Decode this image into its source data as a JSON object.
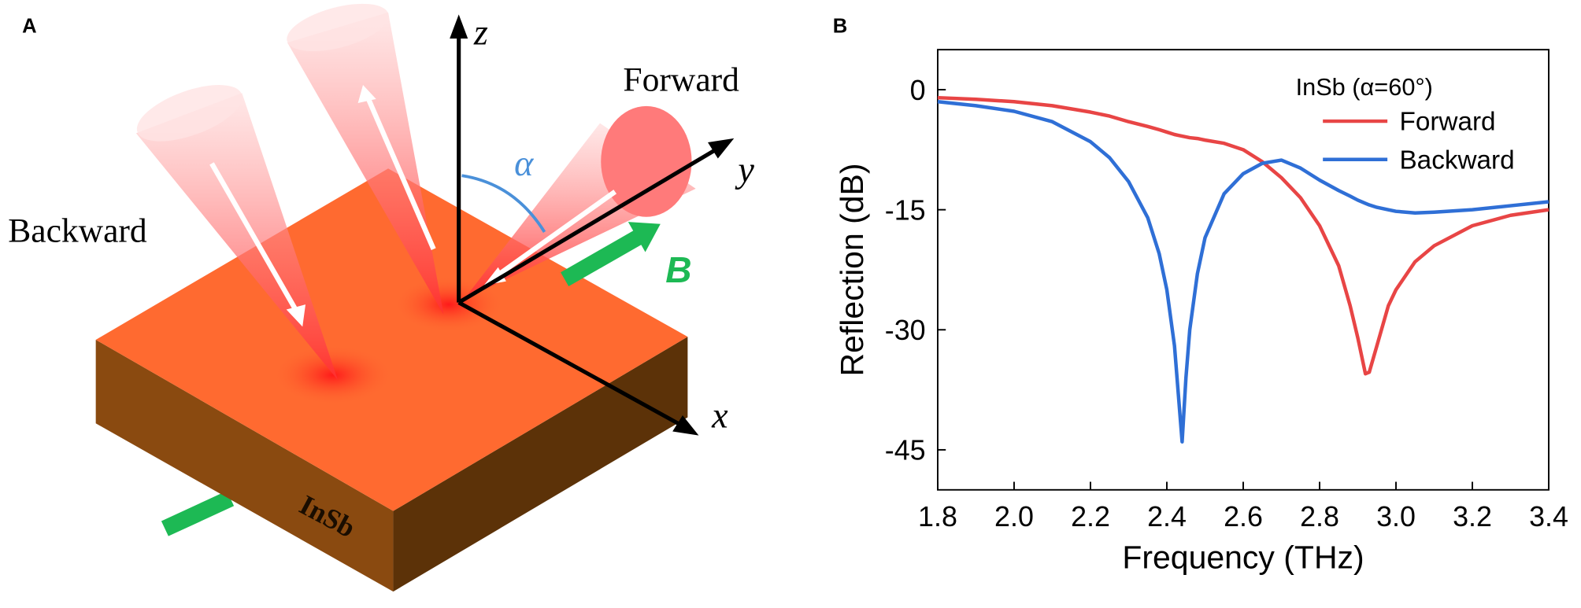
{
  "diagram": {
    "panel_label": "A",
    "backward": "Backward",
    "forward": "Forward",
    "z_axis": "z",
    "y_axis": "y",
    "x_axis": "x",
    "angle": "α",
    "field": "B",
    "material": "InSb"
  },
  "chart_data": {
    "type": "line",
    "panel_label": "B",
    "x_label": "Frequency (THz)",
    "y_label": "Reflection (dB)",
    "legend_title": "InSb (α=60°)",
    "xlim": [
      1.8,
      3.4
    ],
    "xticks": [
      1.8,
      {
        "value": 2,
        "label": "2.0"
      },
      2.2,
      2.4,
      2.6,
      2.8,
      {
        "value": 3,
        "label": "3.0"
      },
      3.2,
      3.4
    ],
    "ylim": [
      -50,
      5
    ],
    "yticks": [
      0,
      -15,
      -30,
      -45
    ],
    "x": [
      1.8,
      1.9,
      2.0,
      2.1,
      2.2,
      2.25,
      2.3,
      2.35,
      2.38,
      2.4,
      2.42,
      2.43,
      2.44,
      2.45,
      2.46,
      2.48,
      2.5,
      2.55,
      2.6,
      2.65,
      2.7,
      2.75,
      2.8,
      2.85,
      2.88,
      2.9,
      2.92,
      2.93,
      2.95,
      2.98,
      3.0,
      3.05,
      3.1,
      3.2,
      3.3,
      3.4
    ],
    "series": [
      {
        "name": "Forward",
        "color": "#e84545",
        "values": [
          -1,
          -1.2,
          -1.5,
          -2,
          -2.8,
          -3.3,
          -4,
          -4.6,
          -5,
          -5.3,
          -5.6,
          -5.7,
          -5.8,
          -5.9,
          -6,
          -6.1,
          -6.3,
          -6.7,
          -7.5,
          -9,
          -11,
          -13.5,
          -17,
          -22,
          -27,
          -31,
          -35.5,
          -35.3,
          -32,
          -27,
          -25,
          -21.5,
          -19.5,
          -17,
          -15.7,
          -15
        ]
      },
      {
        "name": "Backward",
        "color": "#2f6fd6",
        "values": [
          -1.5,
          -2,
          -2.7,
          -4,
          -6.5,
          -8.5,
          -11.5,
          -16,
          -20.5,
          -25,
          -32,
          -38,
          -44,
          -36,
          -30,
          -23,
          -18.5,
          -13,
          -10.5,
          -9.2,
          -8.8,
          -9.8,
          -11.3,
          -12.6,
          -13.3,
          -13.8,
          -14.2,
          -14.4,
          -14.7,
          -15,
          -15.2,
          -15.4,
          -15.3,
          -15,
          -14.5,
          -14
        ]
      }
    ]
  }
}
